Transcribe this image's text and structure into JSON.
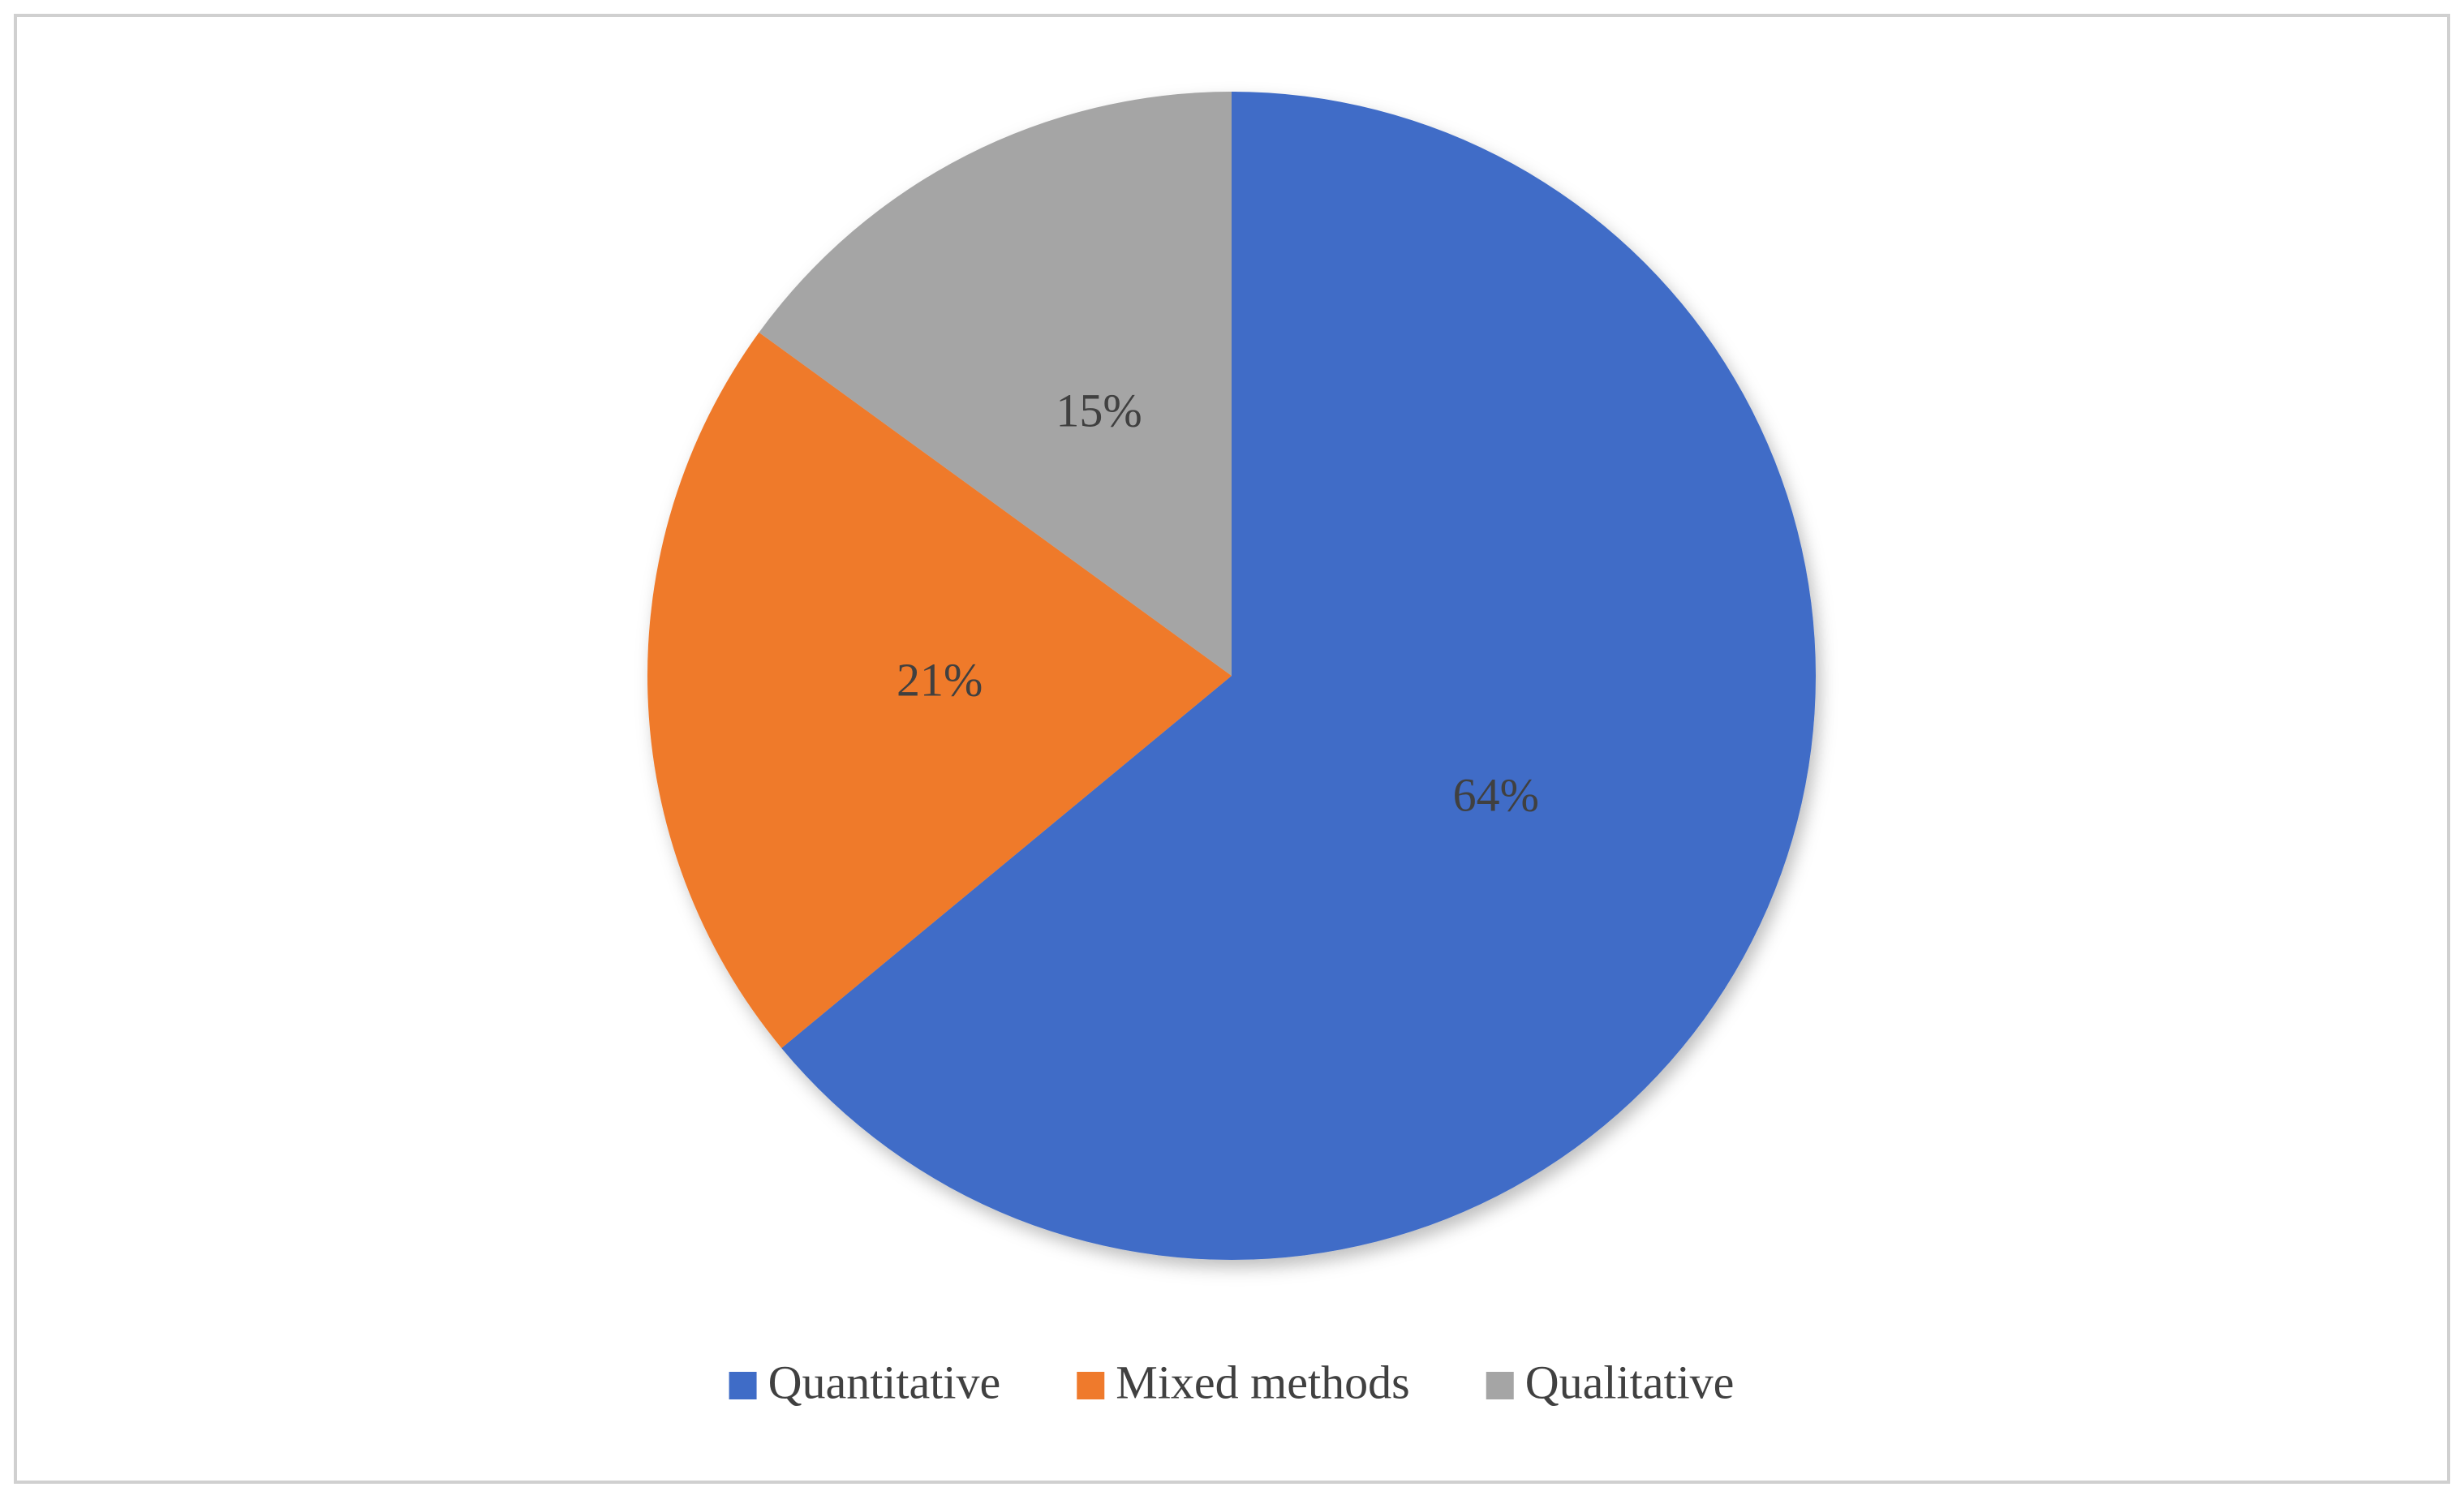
{
  "chart_data": {
    "type": "pie",
    "categories": [
      "Quantitative",
      "Mixed methods",
      "Qualitative"
    ],
    "values": [
      64,
      21,
      15
    ],
    "value_labels": [
      "64%",
      "21%",
      "15%"
    ],
    "colors": [
      "#3f6cc7",
      "#ef7a2c",
      "#a5a5a5"
    ],
    "legend": "bottom"
  }
}
